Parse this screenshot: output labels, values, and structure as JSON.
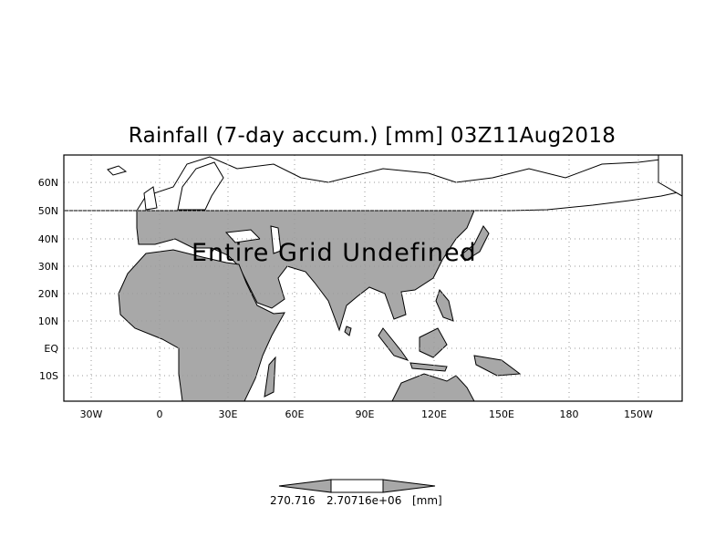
{
  "title": "Rainfall (7-day accum.) [mm] 03Z11Aug2018",
  "overlay_text": "Entire Grid Undefined",
  "lat_labels": [
    "60N",
    "50N",
    "40N",
    "30N",
    "20N",
    "10N",
    "EQ",
    "10S"
  ],
  "lon_labels": [
    "30W",
    "0",
    "30E",
    "60E",
    "90E",
    "120E",
    "150E",
    "180",
    "150W"
  ],
  "colorbar": {
    "label_low": "270.716",
    "label_high": "2.70716e+06",
    "units": "[mm]"
  },
  "colors": {
    "land_fill": "#a8a8a8",
    "grid": "#9a9a9a"
  }
}
